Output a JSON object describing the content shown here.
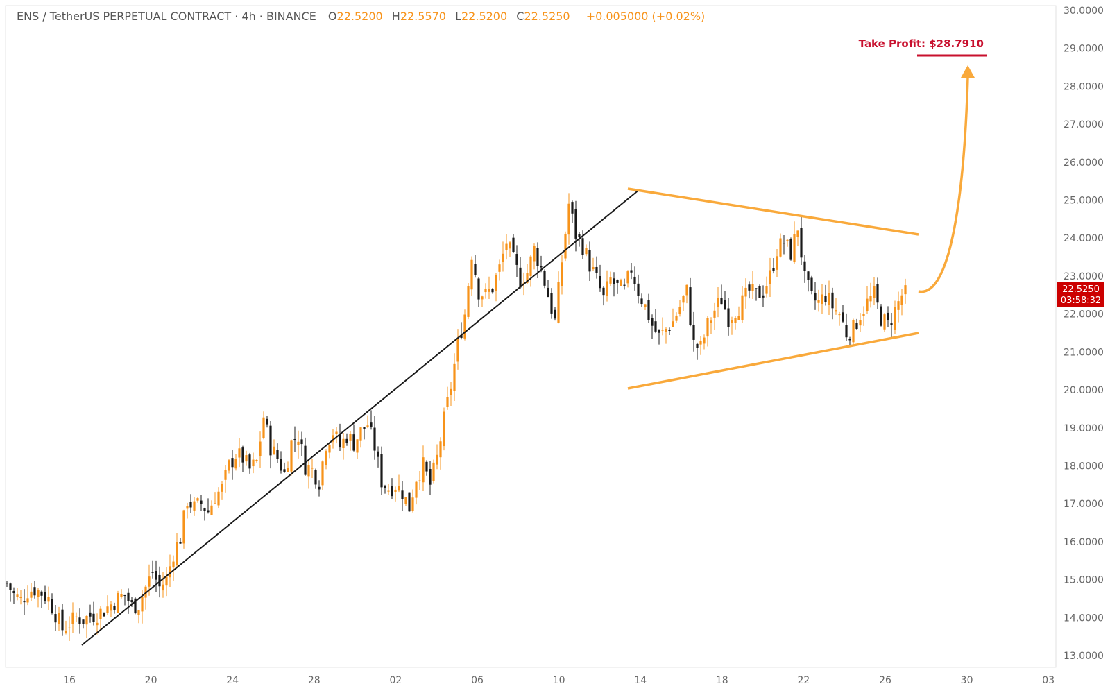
{
  "header": {
    "symbol": "ENS / TetherUS PERPETUAL CONTRACT · 4h · BINANCE",
    "o_label": "O",
    "o_value": "22.5200",
    "h_label": "H",
    "h_value": "22.5570",
    "l_label": "L",
    "l_value": "22.5200",
    "c_label": "C",
    "c_value": "22.5250",
    "change": "+0.005000 (+0.02%)"
  },
  "colors": {
    "up": "#f7931a",
    "down": "#1a1a1a",
    "pattern": "#f9a93b",
    "trendline": "#1a1a1a",
    "take_profit": "#c8102e",
    "price_tag_bg": "#cc0000"
  },
  "price_tag": {
    "price": "22.5250",
    "countdown": "03:58:32",
    "value": 22.525
  },
  "take_profit": {
    "label": "Take Profit: $28.7910",
    "value": 28.791
  },
  "chart_data": {
    "type": "candlestick",
    "y_axis": {
      "min": 13,
      "max": 30,
      "position": "right",
      "ticks": [
        "30.0000",
        "29.0000",
        "28.0000",
        "27.0000",
        "26.0000",
        "25.0000",
        "24.0000",
        "23.0000",
        "22.0000",
        "21.0000",
        "20.0000",
        "19.0000",
        "18.0000",
        "17.0000",
        "16.0000",
        "15.0000",
        "14.0000",
        "13.0000"
      ]
    },
    "x_axis": {
      "ticks": [
        "16",
        "20",
        "24",
        "28",
        "02",
        "06",
        "10",
        "14",
        "18",
        "22",
        "26",
        "30",
        "03"
      ]
    },
    "price_path": [
      [
        0,
        14.9
      ],
      [
        2,
        14.6
      ],
      [
        4,
        14.45
      ],
      [
        6,
        14.7
      ],
      [
        8,
        14.75
      ],
      [
        10,
        14.65
      ],
      [
        12,
        14.5
      ],
      [
        14,
        14.1
      ],
      [
        16,
        13.7
      ],
      [
        18,
        13.85
      ],
      [
        20,
        14.0
      ],
      [
        22,
        13.95
      ],
      [
        24,
        14.05
      ],
      [
        26,
        14.1
      ],
      [
        28,
        14.2
      ],
      [
        30,
        14.35
      ],
      [
        32,
        14.5
      ],
      [
        34,
        14.6
      ],
      [
        36,
        14.3
      ],
      [
        38,
        14.35
      ],
      [
        40,
        14.8
      ],
      [
        42,
        15.2
      ],
      [
        44,
        14.8
      ],
      [
        46,
        15.0
      ],
      [
        48,
        15.7
      ],
      [
        50,
        16.1
      ],
      [
        52,
        17.1
      ],
      [
        54,
        16.9
      ],
      [
        56,
        17.0
      ],
      [
        58,
        16.8
      ],
      [
        60,
        17.2
      ],
      [
        62,
        17.4
      ],
      [
        64,
        18.0
      ],
      [
        66,
        18.3
      ],
      [
        68,
        18.2
      ],
      [
        70,
        17.9
      ],
      [
        72,
        18.1
      ],
      [
        74,
        19.3
      ],
      [
        76,
        18.5
      ],
      [
        78,
        18.2
      ],
      [
        80,
        17.8
      ],
      [
        82,
        18.6
      ],
      [
        84,
        18.8
      ],
      [
        86,
        18.0
      ],
      [
        88,
        17.9
      ],
      [
        90,
        17.6
      ],
      [
        92,
        18.6
      ],
      [
        94,
        18.9
      ],
      [
        96,
        18.5
      ],
      [
        98,
        18.8
      ],
      [
        100,
        18.6
      ],
      [
        102,
        18.9
      ],
      [
        104,
        19.1
      ],
      [
        106,
        18.5
      ],
      [
        108,
        17.6
      ],
      [
        110,
        17.4
      ],
      [
        112,
        17.5
      ],
      [
        114,
        17.3
      ],
      [
        116,
        16.9
      ],
      [
        118,
        17.7
      ],
      [
        120,
        18.0
      ],
      [
        122,
        17.5
      ],
      [
        124,
        18.2
      ],
      [
        126,
        19.2
      ],
      [
        128,
        20.1
      ],
      [
        130,
        21.2
      ],
      [
        132,
        22.0
      ],
      [
        134,
        23.6
      ],
      [
        136,
        22.6
      ],
      [
        138,
        22.5
      ],
      [
        140,
        22.7
      ],
      [
        142,
        23.2
      ],
      [
        144,
        23.9
      ],
      [
        146,
        23.4
      ],
      [
        148,
        22.9
      ],
      [
        150,
        23.1
      ],
      [
        152,
        23.7
      ],
      [
        154,
        23.2
      ],
      [
        156,
        22.5
      ],
      [
        158,
        21.8
      ],
      [
        160,
        23.4
      ],
      [
        162,
        24.9
      ],
      [
        164,
        24.1
      ],
      [
        166,
        23.8
      ],
      [
        168,
        23.3
      ],
      [
        170,
        22.9
      ],
      [
        172,
        22.4
      ],
      [
        174,
        22.9
      ],
      [
        176,
        22.7
      ],
      [
        178,
        22.6
      ],
      [
        180,
        23.2
      ],
      [
        182,
        22.6
      ],
      [
        184,
        22.2
      ],
      [
        186,
        21.7
      ],
      [
        188,
        21.4
      ],
      [
        190,
        21.6
      ],
      [
        192,
        21.8
      ],
      [
        194,
        22.2
      ],
      [
        196,
        22.6
      ],
      [
        198,
        21.2
      ],
      [
        200,
        21.1
      ],
      [
        202,
        21.7
      ],
      [
        204,
        22.1
      ],
      [
        206,
        22.4
      ],
      [
        208,
        21.9
      ],
      [
        210,
        22.1
      ],
      [
        212,
        22.3
      ],
      [
        214,
        22.6
      ],
      [
        216,
        22.5
      ],
      [
        218,
        22.6
      ],
      [
        220,
        23.0
      ],
      [
        222,
        23.7
      ],
      [
        224,
        23.9
      ],
      [
        226,
        23.6
      ],
      [
        228,
        24.3
      ],
      [
        230,
        22.9
      ],
      [
        232,
        22.4
      ],
      [
        234,
        22.3
      ],
      [
        236,
        22.5
      ],
      [
        238,
        22.2
      ],
      [
        240,
        22.0
      ],
      [
        242,
        21.5
      ],
      [
        244,
        21.6
      ],
      [
        246,
        22.0
      ],
      [
        248,
        22.3
      ],
      [
        250,
        22.5
      ],
      [
        252,
        21.9
      ],
      [
        254,
        21.7
      ],
      [
        256,
        22.1
      ],
      [
        258,
        22.5
      ],
      [
        259,
        22.525
      ]
    ]
  }
}
